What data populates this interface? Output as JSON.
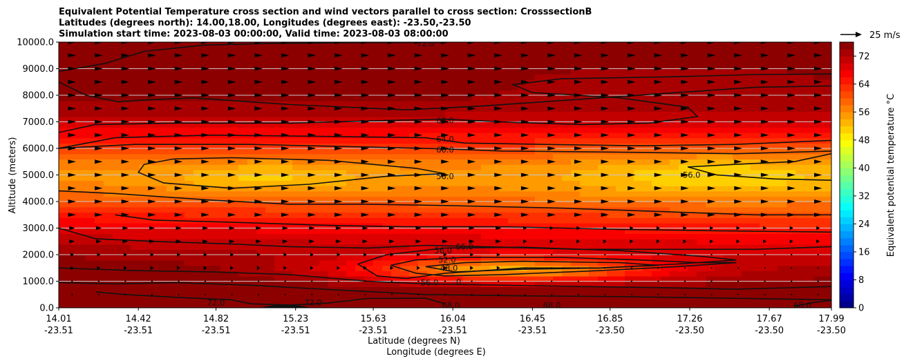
{
  "chart_data": {
    "type": "contour_cross_section",
    "title_lines": [
      "Equivalent Potential Temperature cross section and wind vectors parallel to cross section: CrosssectionB",
      "Latitudes (degrees north): 14.00,18.00, Longitudes (degrees east): -23.50,-23.50",
      "Simulation start time: 2023-08-03 00:00:00, Valid time: 2023-08-03 08:00:00"
    ],
    "ylabel": "Altitude (meters)",
    "xlabel_lat": "Latitude (degrees N)",
    "xlabel_lon": "Longitude (degrees E)",
    "ylim": [
      0,
      10000
    ],
    "y_ticks": [
      "0.0",
      "1000.0",
      "2000.0",
      "3000.0",
      "4000.0",
      "5000.0",
      "6000.0",
      "7000.0",
      "8000.0",
      "9000.0",
      "10000.0"
    ],
    "x_ticks": [
      {
        "lat": "14.01",
        "lon": "-23.51"
      },
      {
        "lat": "14.42",
        "lon": "-23.51"
      },
      {
        "lat": "14.82",
        "lon": "-23.51"
      },
      {
        "lat": "15.23",
        "lon": "-23.51"
      },
      {
        "lat": "15.63",
        "lon": "-23.51"
      },
      {
        "lat": "16.04",
        "lon": "-23.51"
      },
      {
        "lat": "16.45",
        "lon": "-23.51"
      },
      {
        "lat": "16.85",
        "lon": "-23.50"
      },
      {
        "lat": "17.26",
        "lon": "-23.50"
      },
      {
        "lat": "17.67",
        "lon": "-23.50"
      },
      {
        "lat": "17.99",
        "lon": "-23.50"
      }
    ],
    "grid": "horizontal",
    "colorbar": {
      "label": "Equivalent potential temperature $^\\circ$C",
      "label_text": "Equivalent potential temperature °C",
      "min": 0,
      "max": 76,
      "step": 2,
      "ticks": [
        "0",
        "8",
        "16",
        "24",
        "32",
        "40",
        "48",
        "56",
        "64",
        "72"
      ]
    },
    "quiver_key": {
      "label": "25 m/s",
      "speed": 25
    },
    "contour_labels": [
      {
        "text": "72.0",
        "lat": 15.9,
        "alt": 9950
      },
      {
        "text": "68.0",
        "lat": 16.0,
        "alt": 7050
      },
      {
        "text": "64.0",
        "lat": 16.0,
        "alt": 6350
      },
      {
        "text": "60.0",
        "lat": 16.0,
        "alt": 5950
      },
      {
        "text": "56.0",
        "lat": 16.0,
        "alt": 4950
      },
      {
        "text": "56.0",
        "lat": 17.27,
        "alt": 5000
      },
      {
        "text": "56.0",
        "lat": 15.99,
        "alt": 2150
      },
      {
        "text": "66.0",
        "lat": 16.1,
        "alt": 2300
      },
      {
        "text": "52.0",
        "lat": 16.01,
        "alt": 1800
      },
      {
        "text": "48.0",
        "lat": 16.02,
        "alt": 1500
      },
      {
        "text": "56.0",
        "lat": 15.92,
        "alt": 950
      },
      {
        "text": "0",
        "lat": 16.07,
        "alt": 980
      },
      {
        "text": "72.0",
        "lat": 14.82,
        "alt": 200
      },
      {
        "text": "72.0",
        "lat": 15.32,
        "alt": 200
      },
      {
        "text": "68.0",
        "lat": 16.03,
        "alt": 90
      },
      {
        "text": "68.0",
        "lat": 16.55,
        "alt": 90
      },
      {
        "text": "68.0",
        "lat": 17.84,
        "alt": 90
      }
    ]
  }
}
